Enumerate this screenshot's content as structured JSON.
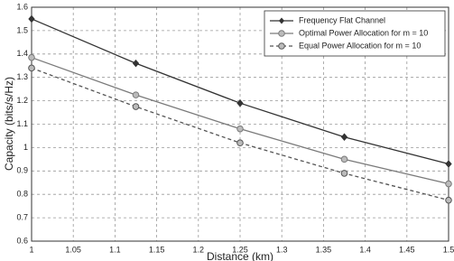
{
  "chart_data": {
    "type": "line",
    "x_label": "Distance (km)",
    "y_label": "Capacity (bits/s/Hz)",
    "x": [
      1,
      1.125,
      1.25,
      1.375,
      1.5
    ],
    "series": [
      {
        "name": "Frequency Flat Channel",
        "color": "#333333",
        "marker": "diamond",
        "style": "solid",
        "values": [
          1.55,
          1.36,
          1.19,
          1.045,
          0.93
        ]
      },
      {
        "name": "Optimal Power Allocation for m = 10",
        "color": "#7a7a7a",
        "marker": "circle",
        "style": "solid",
        "values": [
          1.385,
          1.225,
          1.08,
          0.95,
          0.845
        ]
      },
      {
        "name": "Equal Power Allocation for m = 10",
        "color": "#555555",
        "marker": "circle",
        "style": "dashed",
        "values": [
          1.34,
          1.175,
          1.02,
          0.89,
          0.775
        ]
      }
    ],
    "xlim": [
      1,
      1.5
    ],
    "xticks": [
      1,
      1.05,
      1.1,
      1.15,
      1.2,
      1.25,
      1.3,
      1.35,
      1.4,
      1.45,
      1.5
    ],
    "ylim": [
      0.6,
      1.6
    ],
    "yticks": [
      0.6,
      0.7,
      0.8,
      0.9,
      1,
      1.1,
      1.2,
      1.3,
      1.4,
      1.5,
      1.6
    ],
    "grid": true,
    "legend": "top-right"
  }
}
